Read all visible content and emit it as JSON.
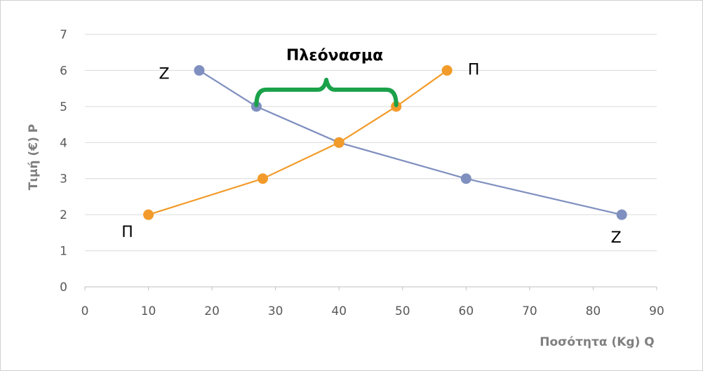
{
  "chart_data": {
    "type": "line",
    "title": "",
    "xlabel": "Ποσότητα (Kg) Q",
    "ylabel": "Τιμή (€) P",
    "xlim": [
      0,
      90
    ],
    "ylim": [
      0,
      7
    ],
    "xticks": [
      0,
      10,
      20,
      30,
      40,
      50,
      60,
      70,
      80,
      90
    ],
    "yticks": [
      0,
      1,
      2,
      3,
      4,
      5,
      6,
      7
    ],
    "grid": true,
    "legend": "none",
    "series": [
      {
        "name": "Ζ",
        "color": "#7f8fbf",
        "points": [
          [
            18,
            6
          ],
          [
            27,
            5
          ],
          [
            40,
            4
          ],
          [
            60,
            3
          ],
          [
            84.5,
            2
          ]
        ]
      },
      {
        "name": "Π",
        "color": "#f29b2a",
        "points": [
          [
            10,
            2
          ],
          [
            28,
            3
          ],
          [
            40,
            4
          ],
          [
            49,
            5
          ],
          [
            57,
            6
          ]
        ]
      }
    ],
    "curve_labels": [
      {
        "text": "Ζ",
        "at": [
          18,
          6
        ],
        "anchor": "left"
      },
      {
        "text": "Ζ",
        "at": [
          84.5,
          2
        ],
        "anchor": "below"
      },
      {
        "text": "Π",
        "at": [
          10,
          2
        ],
        "anchor": "below-left"
      },
      {
        "text": "Π",
        "at": [
          57,
          6
        ],
        "anchor": "right"
      }
    ],
    "annotation": {
      "text": "Πλεόνασμα",
      "from": [
        27,
        5
      ],
      "to": [
        49,
        5
      ],
      "brace_color": "#1aa14a"
    }
  }
}
